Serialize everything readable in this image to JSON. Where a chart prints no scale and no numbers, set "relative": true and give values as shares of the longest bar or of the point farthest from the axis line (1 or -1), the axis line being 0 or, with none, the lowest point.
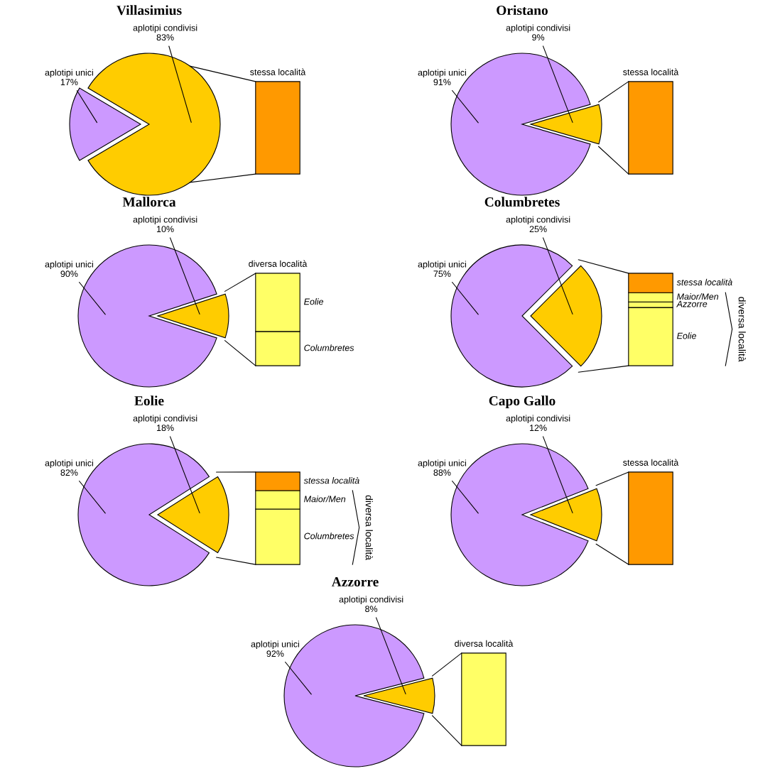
{
  "chart_data": [
    {
      "type": "pie",
      "title": "Villasimius",
      "categories": [
        "aplotipi unici",
        "aplotipi condivisi"
      ],
      "values": [
        17,
        83
      ],
      "value_labels": [
        "17%",
        "83%"
      ],
      "colors": [
        "#cc99ff",
        "#ffcc00"
      ]
    },
    {
      "type": "other",
      "title": "stessa località",
      "color": "#ff9900"
    },
    {
      "type": "pie",
      "title": "Oristano",
      "categories": [
        "aplotipi unici",
        "aplotipi condivisi"
      ],
      "values": [
        91,
        9
      ],
      "value_labels": [
        "91%",
        "9%"
      ],
      "colors": [
        "#cc99ff",
        "#ffcc00"
      ]
    },
    {
      "type": "other",
      "title": "stessa località",
      "color": "#ff9900"
    },
    {
      "type": "pie",
      "title": "Mallorca",
      "categories": [
        "aplotipi unici",
        "aplotipi condivisi"
      ],
      "values": [
        90,
        10
      ],
      "value_labels": [
        "90%",
        "10%"
      ],
      "colors": [
        "#cc99ff",
        "#ffcc00"
      ]
    },
    {
      "type": "bar",
      "stacked": true,
      "relative": true,
      "title": "diversa località",
      "categories": [
        null
      ],
      "series": [
        {
          "name": "Columbretes",
          "color": "#ffff66",
          "values": [
            0.37
          ]
        },
        {
          "name": "Eolie",
          "color": "#ffff66",
          "values": [
            0.63
          ]
        }
      ]
    },
    {
      "type": "pie",
      "title": "Columbretes",
      "categories": [
        "aplotipi unici",
        "aplotipi condivisi"
      ],
      "values": [
        75,
        25
      ],
      "value_labels": [
        "75%",
        "25%"
      ],
      "colors": [
        "#cc99ff",
        "#ffcc00"
      ]
    },
    {
      "type": "bar",
      "stacked": true,
      "relative": true,
      "annotations": [
        "diversa località"
      ],
      "categories": [
        null
      ],
      "series": [
        {
          "name": "Eolie",
          "color": "#ffff66",
          "values": [
            0.63
          ]
        },
        {
          "name": "Azzorre",
          "color": "#ffff66",
          "values": [
            0.06
          ]
        },
        {
          "name": "Maior/Men",
          "color": "#ffff66",
          "values": [
            0.1
          ]
        },
        {
          "name": "stessa località",
          "color": "#ff9900",
          "values": [
            0.21
          ]
        }
      ]
    },
    {
      "type": "pie",
      "title": "Eolie",
      "categories": [
        "aplotipi unici",
        "aplotipi condivisi"
      ],
      "values": [
        82,
        18
      ],
      "value_labels": [
        "82%",
        "18%"
      ],
      "colors": [
        "#cc99ff",
        "#ffcc00"
      ]
    },
    {
      "type": "bar",
      "stacked": true,
      "relative": true,
      "annotations": [
        "diversa località"
      ],
      "categories": [
        null
      ],
      "series": [
        {
          "name": "Columbretes",
          "color": "#ffff66",
          "values": [
            0.6
          ]
        },
        {
          "name": "Maior/Men",
          "color": "#ffff66",
          "values": [
            0.2
          ]
        },
        {
          "name": "stessa località",
          "color": "#ff9900",
          "values": [
            0.2
          ]
        }
      ]
    },
    {
      "type": "pie",
      "title": "Capo Gallo",
      "categories": [
        "aplotipi unici",
        "aplotipi condivisi"
      ],
      "values": [
        88,
        12
      ],
      "value_labels": [
        "88%",
        "12%"
      ],
      "colors": [
        "#cc99ff",
        "#ffcc00"
      ]
    },
    {
      "type": "other",
      "title": "stessa località",
      "color": "#ff9900"
    },
    {
      "type": "pie",
      "title": "Azzorre",
      "categories": [
        "aplotipi unici",
        "aplotipi condivisi"
      ],
      "values": [
        92,
        8
      ],
      "value_labels": [
        "92%",
        "8%"
      ],
      "colors": [
        "#cc99ff",
        "#ffcc00"
      ]
    },
    {
      "type": "other",
      "title": "diversa località",
      "color": "#ffff66"
    }
  ]
}
